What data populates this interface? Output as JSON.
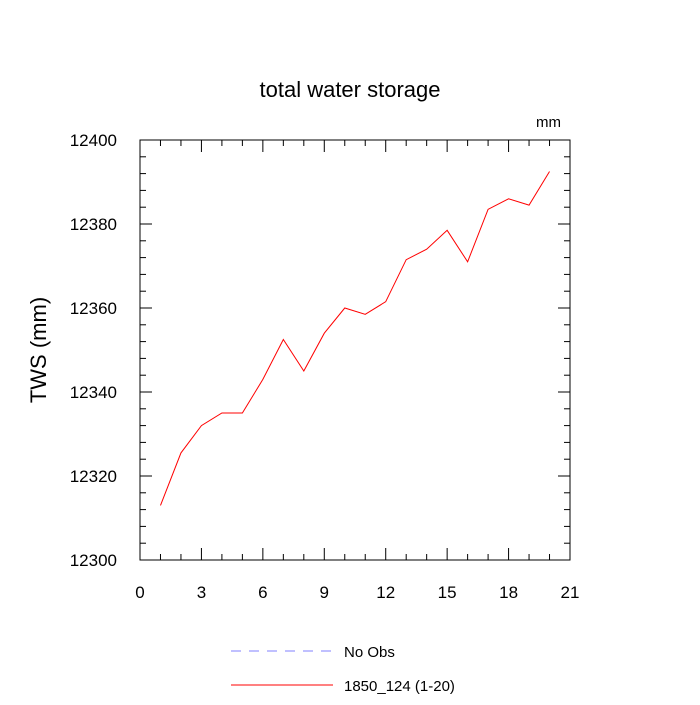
{
  "chart_data": {
    "type": "line",
    "title": "total water storage",
    "units_label": "mm",
    "ylabel": "TWS  (mm)",
    "xlabel": "",
    "xlim": [
      0,
      21
    ],
    "ylim": [
      12300,
      12400
    ],
    "x_ticks": [
      0,
      3,
      6,
      9,
      12,
      15,
      18,
      21
    ],
    "x_tick_labels": [
      "0",
      "3",
      "6",
      "9",
      "12",
      "15",
      "18",
      "21"
    ],
    "y_ticks": [
      12300,
      12320,
      12340,
      12360,
      12380,
      12400
    ],
    "y_tick_labels": [
      "12300",
      "12320",
      "12340",
      "12360",
      "12380",
      "12400"
    ],
    "grid": false,
    "legend_position": "bottom",
    "series": [
      {
        "name": "No Obs",
        "color": "#8080ff",
        "dash": "dashed",
        "x": [],
        "values": []
      },
      {
        "name": "1850_124 (1-20)",
        "color": "#ff0000",
        "dash": "solid",
        "x": [
          1,
          2,
          3,
          4,
          5,
          6,
          7,
          8,
          9,
          10,
          11,
          12,
          13,
          14,
          15,
          16,
          17,
          18,
          19,
          20
        ],
        "values": [
          12313,
          12325.5,
          12332,
          12335,
          12335,
          12343,
          12352.5,
          12345,
          12354,
          12360,
          12358.5,
          12361.5,
          12371.5,
          12374,
          12378.5,
          12371,
          12383.5,
          12386,
          12384.5,
          12392.5
        ]
      }
    ]
  }
}
